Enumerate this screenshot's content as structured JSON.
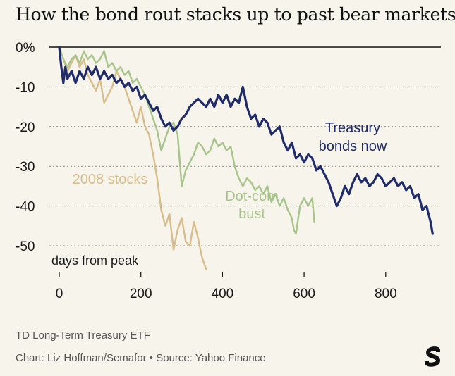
{
  "colors": {
    "treasury": "#1f2b6b",
    "dotcom": "#a7c48a",
    "stocks2008": "#d8bc8a",
    "grid": "#8a8a80",
    "background": "#f7f4ec"
  },
  "chart_data": {
    "type": "line",
    "title": "How the bond rout stacks up to past bear markets:",
    "xlabel": "days from peak",
    "ylabel": "",
    "xlim": [
      0,
      930
    ],
    "ylim": [
      -57,
      0
    ],
    "x_ticks": [
      0,
      200,
      400,
      600,
      800
    ],
    "x_tick_labels": [
      "0",
      "200",
      "400",
      "600",
      "800"
    ],
    "y_ticks": [
      0,
      -10,
      -20,
      -30,
      -40,
      -50
    ],
    "y_tick_labels": [
      "0%",
      "-10",
      "-20",
      "-30",
      "-40",
      "-50"
    ],
    "grid": "horizontal-dashed",
    "series": [
      {
        "name": "Treasury bonds now",
        "label_lines": [
          "Treasury",
          "bonds now"
        ],
        "color_key": "treasury",
        "points": [
          [
            0,
            0
          ],
          [
            5,
            -5
          ],
          [
            10,
            -9
          ],
          [
            15,
            -5
          ],
          [
            20,
            -8
          ],
          [
            30,
            -6
          ],
          [
            40,
            -9
          ],
          [
            50,
            -6
          ],
          [
            60,
            -8
          ],
          [
            70,
            -5
          ],
          [
            80,
            -7
          ],
          [
            90,
            -5
          ],
          [
            100,
            -8
          ],
          [
            110,
            -6
          ],
          [
            120,
            -8
          ],
          [
            130,
            -7
          ],
          [
            140,
            -9
          ],
          [
            150,
            -8
          ],
          [
            160,
            -10
          ],
          [
            170,
            -9
          ],
          [
            180,
            -11
          ],
          [
            190,
            -10
          ],
          [
            200,
            -13
          ],
          [
            210,
            -12
          ],
          [
            220,
            -14
          ],
          [
            230,
            -16
          ],
          [
            240,
            -15
          ],
          [
            250,
            -18
          ],
          [
            260,
            -20
          ],
          [
            270,
            -19
          ],
          [
            280,
            -21
          ],
          [
            290,
            -20
          ],
          [
            300,
            -18
          ],
          [
            310,
            -17
          ],
          [
            320,
            -15
          ],
          [
            330,
            -14
          ],
          [
            340,
            -13
          ],
          [
            350,
            -14
          ],
          [
            360,
            -15
          ],
          [
            370,
            -13
          ],
          [
            380,
            -15
          ],
          [
            390,
            -12
          ],
          [
            400,
            -14
          ],
          [
            410,
            -12
          ],
          [
            420,
            -15
          ],
          [
            430,
            -13
          ],
          [
            440,
            -14
          ],
          [
            450,
            -10
          ],
          [
            460,
            -15
          ],
          [
            470,
            -18
          ],
          [
            480,
            -17
          ],
          [
            490,
            -20
          ],
          [
            500,
            -18
          ],
          [
            510,
            -19
          ],
          [
            520,
            -22
          ],
          [
            530,
            -21
          ],
          [
            540,
            -20
          ],
          [
            550,
            -24
          ],
          [
            560,
            -26
          ],
          [
            570,
            -24
          ],
          [
            580,
            -28
          ],
          [
            590,
            -27
          ],
          [
            600,
            -29
          ],
          [
            610,
            -27
          ],
          [
            620,
            -28
          ],
          [
            630,
            -31
          ],
          [
            640,
            -30
          ],
          [
            650,
            -32
          ],
          [
            660,
            -34
          ],
          [
            670,
            -37
          ],
          [
            680,
            -40
          ],
          [
            690,
            -38
          ],
          [
            700,
            -35
          ],
          [
            710,
            -37
          ],
          [
            720,
            -34
          ],
          [
            730,
            -32
          ],
          [
            740,
            -34
          ],
          [
            750,
            -33
          ],
          [
            760,
            -35
          ],
          [
            770,
            -34
          ],
          [
            780,
            -32
          ],
          [
            790,
            -33
          ],
          [
            800,
            -35
          ],
          [
            810,
            -34
          ],
          [
            820,
            -33
          ],
          [
            830,
            -35
          ],
          [
            840,
            -34
          ],
          [
            850,
            -36
          ],
          [
            860,
            -35
          ],
          [
            870,
            -38
          ],
          [
            880,
            -37
          ],
          [
            890,
            -41
          ],
          [
            900,
            -40
          ],
          [
            910,
            -44
          ],
          [
            915,
            -47
          ]
        ]
      },
      {
        "name": "Dot-com bust",
        "label_lines": [
          "Dot-com",
          "bust"
        ],
        "color_key": "dotcom",
        "points": [
          [
            0,
            0
          ],
          [
            10,
            -3
          ],
          [
            20,
            -5
          ],
          [
            30,
            -3
          ],
          [
            40,
            -2
          ],
          [
            50,
            -4
          ],
          [
            60,
            -1
          ],
          [
            70,
            -3
          ],
          [
            80,
            -2
          ],
          [
            90,
            -4
          ],
          [
            100,
            -3
          ],
          [
            110,
            -1
          ],
          [
            120,
            -5
          ],
          [
            130,
            -4
          ],
          [
            140,
            -6
          ],
          [
            150,
            -5
          ],
          [
            160,
            -7
          ],
          [
            170,
            -6
          ],
          [
            180,
            -9
          ],
          [
            190,
            -8
          ],
          [
            200,
            -10
          ],
          [
            210,
            -12
          ],
          [
            220,
            -15
          ],
          [
            230,
            -18
          ],
          [
            240,
            -21
          ],
          [
            250,
            -26
          ],
          [
            260,
            -23
          ],
          [
            270,
            -20
          ],
          [
            280,
            -19
          ],
          [
            290,
            -22
          ],
          [
            300,
            -35
          ],
          [
            310,
            -31
          ],
          [
            320,
            -29
          ],
          [
            330,
            -27
          ],
          [
            340,
            -24
          ],
          [
            350,
            -25
          ],
          [
            360,
            -27
          ],
          [
            370,
            -26
          ],
          [
            380,
            -23
          ],
          [
            390,
            -25
          ],
          [
            400,
            -24
          ],
          [
            410,
            -26
          ],
          [
            420,
            -25
          ],
          [
            430,
            -30
          ],
          [
            440,
            -33
          ],
          [
            450,
            -35
          ],
          [
            460,
            -33
          ],
          [
            470,
            -34
          ],
          [
            480,
            -36
          ],
          [
            490,
            -35
          ],
          [
            500,
            -37
          ],
          [
            510,
            -35
          ],
          [
            520,
            -39
          ],
          [
            530,
            -37
          ],
          [
            540,
            -40
          ],
          [
            550,
            -38
          ],
          [
            560,
            -41
          ],
          [
            570,
            -43
          ],
          [
            575,
            -46
          ],
          [
            580,
            -47
          ],
          [
            590,
            -40
          ],
          [
            600,
            -38
          ],
          [
            610,
            -40
          ],
          [
            620,
            -38
          ],
          [
            625,
            -44
          ]
        ]
      },
      {
        "name": "2008 stocks",
        "label_lines": [
          "2008 stocks"
        ],
        "color_key": "stocks2008",
        "points": [
          [
            0,
            0
          ],
          [
            10,
            -3
          ],
          [
            20,
            -6
          ],
          [
            30,
            -4
          ],
          [
            40,
            -2
          ],
          [
            50,
            -5
          ],
          [
            60,
            -3
          ],
          [
            70,
            -7
          ],
          [
            80,
            -9
          ],
          [
            90,
            -11
          ],
          [
            100,
            -8
          ],
          [
            110,
            -14
          ],
          [
            120,
            -12
          ],
          [
            130,
            -10
          ],
          [
            140,
            -6
          ],
          [
            150,
            -8
          ],
          [
            160,
            -10
          ],
          [
            170,
            -13
          ],
          [
            180,
            -16
          ],
          [
            190,
            -19
          ],
          [
            200,
            -15
          ],
          [
            210,
            -20
          ],
          [
            220,
            -22
          ],
          [
            230,
            -27
          ],
          [
            240,
            -33
          ],
          [
            250,
            -41
          ],
          [
            260,
            -45
          ],
          [
            270,
            -42
          ],
          [
            280,
            -51
          ],
          [
            290,
            -46
          ],
          [
            300,
            -43
          ],
          [
            310,
            -49
          ],
          [
            320,
            -50
          ],
          [
            330,
            -44
          ],
          [
            340,
            -48
          ],
          [
            350,
            -53
          ],
          [
            360,
            -56
          ]
        ]
      }
    ]
  },
  "footer": {
    "line1": "TD Long-Term Treasury ETF",
    "line2": "Chart: Liz Hoffman/Semafor • Source: Yahoo Finance",
    "logo_letter": "S"
  }
}
